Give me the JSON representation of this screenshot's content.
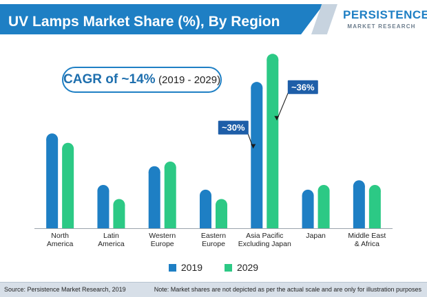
{
  "header": {
    "title": "UV Lamps Market Share (%), By Region",
    "logo_main": "PERSISTENCE",
    "logo_sub": "MARKET RESEARCH"
  },
  "cagr": {
    "label": "CAGR of ~14%",
    "range": "(2019 - 2029)"
  },
  "footer": {
    "source": "Source: Persistence Market Research, 2019",
    "note": "Note: Market shares are not depicted as per the actual scale and are only for illustration purposes"
  },
  "colors": {
    "s2019": "#1e7fc4",
    "s2029": "#2cc985",
    "brand": "#1e7fc4"
  },
  "chart_data": {
    "type": "bar",
    "title": "UV Lamps Market Share (%), By Region",
    "categories": [
      [
        "North",
        "America"
      ],
      [
        "Latin",
        "America"
      ],
      [
        "Western",
        "Europe"
      ],
      [
        "Eastern",
        "Europe"
      ],
      [
        "Asia Pacific",
        "Excluding Japan"
      ],
      [
        "Japan"
      ],
      [
        "Middle East",
        "& Africa"
      ]
    ],
    "series": [
      {
        "name": "2019",
        "values": [
          19,
          8,
          12,
          7,
          30,
          7,
          9
        ]
      },
      {
        "name": "2029",
        "values": [
          17,
          5,
          13,
          5,
          36,
          8,
          8
        ]
      }
    ],
    "annotations": [
      {
        "series": "2019",
        "category_index": 4,
        "text": "~30%"
      },
      {
        "series": "2029",
        "category_index": 4,
        "text": "~36%"
      }
    ],
    "ylim": [
      0,
      37
    ],
    "legend": "bottom-center",
    "grid": false,
    "xlabel": "",
    "ylabel": ""
  }
}
